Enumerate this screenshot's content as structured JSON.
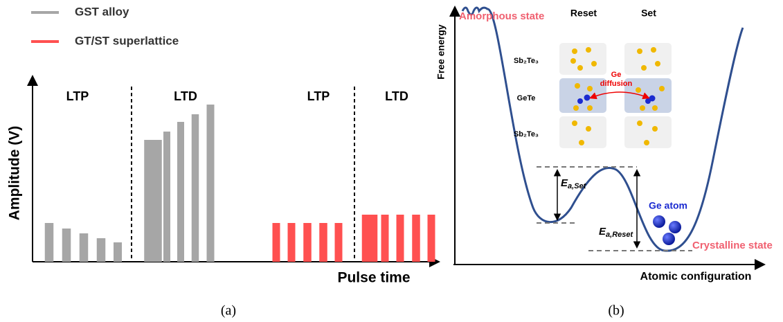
{
  "chart_data": {
    "type": "bar",
    "x_label": "Pulse time",
    "y_label": "Amplitude (V)",
    "caption": "(a)",
    "phases": [
      "LTP",
      "LTD",
      "LTP",
      "LTD"
    ],
    "xlim": [
      0,
      590
    ],
    "ylim": [
      0,
      260
    ],
    "series": [
      {
        "name": "GST alloy",
        "color": "#a6a6a6",
        "x": [
          24,
          49,
          74,
          99,
          123,
          174,
          194,
          214,
          235,
          257
        ],
        "values": [
          56,
          48,
          41,
          34,
          28,
          176,
          188,
          202,
          213,
          227
        ]
      },
      {
        "name": "GT/ST superlattice",
        "color": "#ff5050",
        "x": [
          352,
          374,
          397,
          420,
          442,
          487,
          509,
          531,
          554,
          576
        ],
        "values": [
          56,
          56,
          56,
          56,
          56,
          68,
          68,
          68,
          68,
          68
        ]
      }
    ]
  },
  "diagram": {
    "y_label": "Free energy",
    "x_label": "Atomic configuration",
    "caption": "(b)",
    "amorphous": "Amorphous state",
    "crystalline": "Crystalline state",
    "columns": [
      "Reset",
      "Set"
    ],
    "layers": [
      "Sb₂Te₃",
      "GeTe",
      "Sb₂Te₃"
    ],
    "diffusion": "Ge",
    "diffusion2": "diffusion",
    "ea_set": {
      "symbol": "E",
      "sub": "a,Set"
    },
    "ea_reset": {
      "symbol": "E",
      "sub": "a,Reset"
    },
    "ge_atom": "Ge atom"
  }
}
